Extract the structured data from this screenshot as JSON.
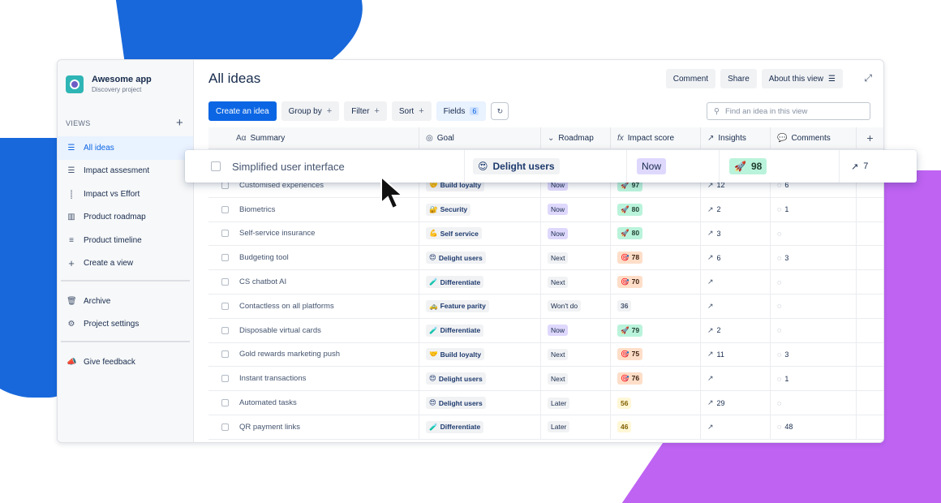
{
  "project": {
    "name": "Awesome app",
    "subtitle": "Discovery project"
  },
  "sidebar": {
    "views_label": "VIEWS",
    "views": [
      {
        "label": "All ideas",
        "icon": "list-icon",
        "active": true
      },
      {
        "label": "Impact assesment",
        "icon": "list-icon"
      },
      {
        "label": "Impact vs Effort",
        "icon": "scatter-icon"
      },
      {
        "label": "Product roadmap",
        "icon": "board-icon"
      },
      {
        "label": "Product timeline",
        "icon": "timeline-icon"
      },
      {
        "label": "Create a view",
        "icon": "plus-icon"
      }
    ],
    "archive": "Archive",
    "settings": "Project settings",
    "feedback": "Give feedback"
  },
  "header": {
    "title": "All ideas",
    "comment": "Comment",
    "share": "Share",
    "about": "About this view"
  },
  "toolbar": {
    "create": "Create an idea",
    "group_by": "Group by",
    "filter": "Filter",
    "sort": "Sort",
    "fields": "Fields",
    "fields_count": "6",
    "search_placeholder": "Find an idea in this view"
  },
  "columns": {
    "summary": "Summary",
    "goal": "Goal",
    "roadmap": "Roadmap",
    "impact": "Impact score",
    "insights": "Insights",
    "comments": "Comments"
  },
  "dragged_row": {
    "summary": "Simplified user interface",
    "goal": "Delight users",
    "goal_emoji": "😍",
    "roadmap": "Now",
    "score": "98",
    "score_emoji": "🚀",
    "insights": "7"
  },
  "rows": [
    {
      "summary": "Customised experiences",
      "goal": "Build loyalty",
      "goal_emoji": "🤝",
      "roadmap": "Now",
      "score": "97",
      "score_emoji": "🚀",
      "insights": "12",
      "comments": "6"
    },
    {
      "summary": "Biometrics",
      "goal": "Security",
      "goal_emoji": "🔐",
      "roadmap": "Now",
      "score": "80",
      "score_emoji": "🚀",
      "insights": "2",
      "comments": "1"
    },
    {
      "summary": "Self-service insurance",
      "goal": "Self service",
      "goal_emoji": "💪",
      "roadmap": "Now",
      "score": "80",
      "score_emoji": "🚀",
      "insights": "3",
      "comments": ""
    },
    {
      "summary": "Budgeting tool",
      "goal": "Delight users",
      "goal_emoji": "😍",
      "roadmap": "Next",
      "score": "78",
      "score_emoji": "🎯",
      "insights": "6",
      "comments": "3"
    },
    {
      "summary": "CS chatbot AI",
      "goal": "Differentiate",
      "goal_emoji": "🧪",
      "roadmap": "Next",
      "score": "70",
      "score_emoji": "🎯",
      "insights": "",
      "comments": ""
    },
    {
      "summary": "Contactless on all platforms",
      "goal": "Feature parity",
      "goal_emoji": "🚕",
      "roadmap": "Won't do",
      "score": "36",
      "score_emoji": "",
      "insights": "",
      "comments": ""
    },
    {
      "summary": "Disposable virtual cards",
      "goal": "Differentiate",
      "goal_emoji": "🧪",
      "roadmap": "Now",
      "score": "79",
      "score_emoji": "🚀",
      "insights": "2",
      "comments": ""
    },
    {
      "summary": "Gold rewards marketing push",
      "goal": "Build loyalty",
      "goal_emoji": "🤝",
      "roadmap": "Next",
      "score": "75",
      "score_emoji": "🎯",
      "insights": "11",
      "comments": "3"
    },
    {
      "summary": "Instant transactions",
      "goal": "Delight users",
      "goal_emoji": "😍",
      "roadmap": "Next",
      "score": "76",
      "score_emoji": "🎯",
      "insights": "",
      "comments": "1"
    },
    {
      "summary": "Automated tasks",
      "goal": "Delight users",
      "goal_emoji": "😍",
      "roadmap": "Later",
      "score": "56",
      "score_emoji": "",
      "insights": "29",
      "comments": ""
    },
    {
      "summary": "QR payment links",
      "goal": "Differentiate",
      "goal_emoji": "🧪",
      "roadmap": "Later",
      "score": "46",
      "score_emoji": "",
      "insights": "",
      "comments": "48"
    }
  ]
}
